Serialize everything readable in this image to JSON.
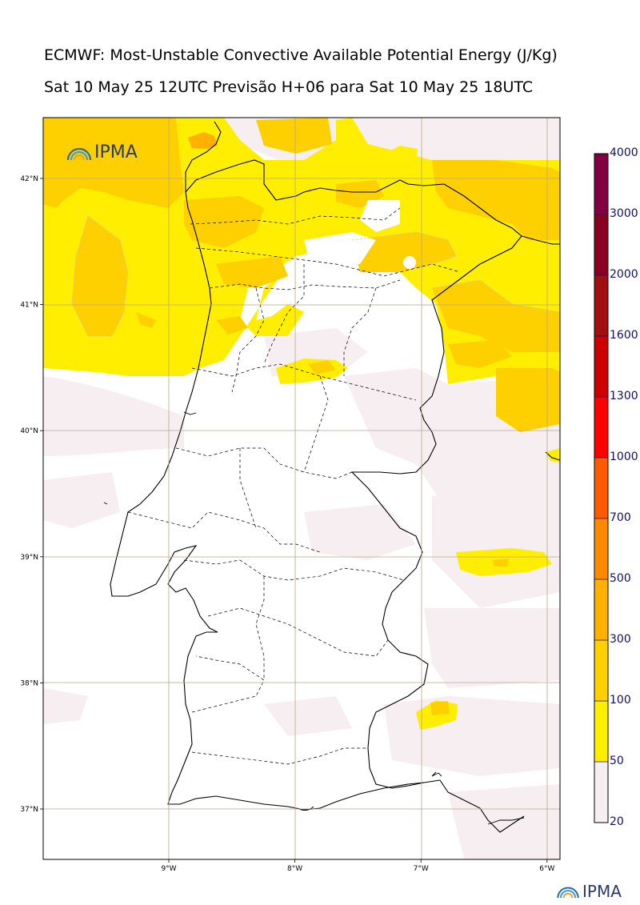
{
  "header": {
    "title": "ECMWF: Most-Unstable Convective Available Potential Energy (J/Kg)",
    "subtitle": "Sat 10 May 25 12UTC Previsão H+06 para Sat 10 May 25 18UTC"
  },
  "map": {
    "region": "Portugal",
    "lon_range": [
      -10.0,
      -5.9
    ],
    "lat_range": [
      36.6,
      42.5
    ],
    "lat_ticks": [
      {
        "value": 42,
        "label": "42°N"
      },
      {
        "value": 41,
        "label": "41°N"
      },
      {
        "value": 40,
        "label": "40°N"
      },
      {
        "value": 39,
        "label": "39°N"
      },
      {
        "value": 38,
        "label": "38°N"
      },
      {
        "value": 37,
        "label": "37°N"
      }
    ],
    "lon_ticks": [
      {
        "value": -9,
        "label": "9°W"
      },
      {
        "value": -8,
        "label": "8°W"
      },
      {
        "value": -7,
        "label": "7°W"
      },
      {
        "value": -6,
        "label": "6°W"
      }
    ]
  },
  "colorbar": {
    "levels": [
      "20",
      "50",
      "100",
      "300",
      "500",
      "700",
      "1000",
      "1300",
      "1600",
      "2000",
      "3000",
      "4000"
    ],
    "colors": [
      "#f6eef0",
      "#ffee00",
      "#ffd000",
      "#ffb000",
      "#ff8a00",
      "#ff5a00",
      "#ff0000",
      "#cc0000",
      "#a01010",
      "#8a0020",
      "#800040",
      "#5a1000"
    ]
  },
  "logos": {
    "map_logo": "IPMA",
    "footer_logo": "IPMA"
  },
  "icons": {
    "logo_icon": "rainbow-arc-icon"
  }
}
